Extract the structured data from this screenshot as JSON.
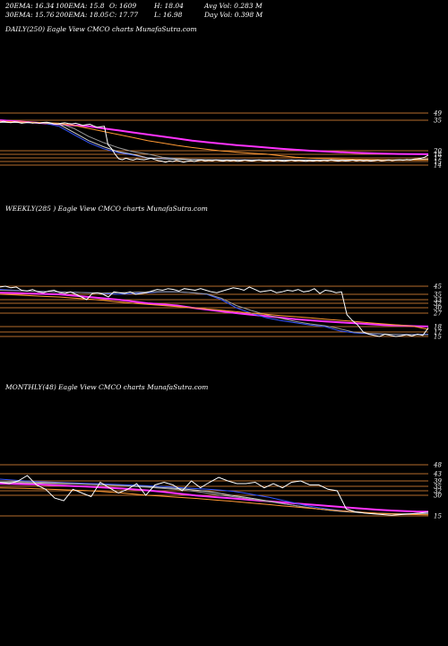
{
  "header": {
    "row1": [
      "20EMA: 16.34",
      "100EMA: 15.8",
      "O: 1609",
      "H: 18.04",
      "Avg Vol: 0.283 M"
    ],
    "row2": [
      "30EMA: 15.76",
      "200EMA: 18.05",
      "C: 17.77",
      "L: 16.98",
      "Day Vol: 0.398 M"
    ]
  },
  "panels": {
    "daily": {
      "title": "DAILY(250) Eagle  View  CMCO charts MunafaSutra.com"
    },
    "weekly": {
      "title": "WEEKLY(285                    ) Eagle  View  CMCO charts MunafaSutra.com"
    },
    "monthly": {
      "title": "MONTHLY(48) Eagle  View  CMCO charts MunafaSutra.com"
    }
  },
  "chart_data": [
    {
      "type": "line",
      "title": "DAILY(250) Eagle  View  CMCO charts MunafaSutra.com",
      "yticks": [
        "49",
        "35",
        "20",
        "18",
        "17",
        "15",
        "14"
      ],
      "price": [
        34,
        34.5,
        34,
        33.8,
        34.2,
        34,
        33.5,
        33.8,
        34,
        33.6,
        33.8,
        33.5,
        33.9,
        34,
        33.7,
        33.2,
        33,
        33.5,
        33.7,
        33.4,
        33.2,
        33.5,
        33,
        32.5,
        32.8,
        33,
        32.2,
        31.5,
        31.8,
        32,
        23,
        21,
        18,
        16.5,
        16,
        16.8,
        16.2,
        15.8,
        16.5,
        16.2,
        16,
        16.4,
        16.8,
        16.1,
        15.5,
        15.2,
        14.8,
        15.3,
        15,
        15.6,
        15.2,
        14.8,
        15.1,
        15.4,
        15,
        15.5,
        15.8,
        15.3,
        15.6,
        15.4,
        15.9,
        15.5,
        15.2,
        15.7,
        15.3,
        15.6,
        15.1,
        15.4,
        15.8,
        15.5,
        15.2,
        15.6,
        15.9,
        15.5,
        15.3,
        15.6,
        15.2,
        15.7,
        15.4,
        15.1,
        15.5,
        15.8,
        15.3,
        15.6,
        15.4,
        15.1,
        15.5,
        15.2,
        15.6,
        15.3,
        15.7,
        15.4,
        15.9,
        15.5,
        15.2,
        15.6,
        15.3,
        15.5,
        15.8,
        15.4,
        15.7,
        15.3,
        15.6,
        15.2,
        15.5,
        15.8,
        15.4,
        15.6,
        15.9,
        15.5,
        15.8,
        16,
        15.7,
        16.1,
        15.8,
        16.3,
        16.5,
        16.8,
        17.2,
        17.77
      ],
      "series": [
        {
          "name": "",
          "color": "#ff33ff",
          "values": [
            35,
            34.5,
            34,
            33.5,
            33,
            32.5,
            32,
            31,
            30,
            29,
            28,
            27,
            26,
            25,
            24.2,
            23.5,
            22.8,
            22.2,
            21.6,
            21,
            20.5,
            20,
            19.6,
            19.2,
            18.9,
            18.6,
            18.4,
            18.2,
            18.1,
            18.05
          ]
        },
        {
          "name": "",
          "color": "#3355ff",
          "values": [
            34,
            33.9,
            33.8,
            33.6,
            32,
            28,
            24,
            21,
            19,
            17.8,
            17,
            16.6,
            16.3,
            16.1,
            16,
            15.9,
            15.9,
            15.8,
            15.8,
            15.8,
            15.8,
            15.8,
            15.8,
            15.8,
            15.8,
            15.8,
            15.8,
            15.8,
            16,
            16.3
          ]
        },
        {
          "name": "",
          "color": "#999999",
          "values": [
            34,
            34,
            33.9,
            33.8,
            33.5,
            31,
            27,
            24,
            21.5,
            19.5,
            18.2,
            17.2,
            16.6,
            16.2,
            16,
            15.9,
            15.8,
            15.8,
            15.8,
            15.8,
            15.8,
            15.8,
            15.8,
            15.8,
            15.8,
            15.8,
            15.8,
            15.8,
            15.9,
            16
          ]
        },
        {
          "name": "",
          "color": "#cccccc",
          "values": [
            34,
            33.9,
            33.8,
            33.6,
            33,
            29,
            25,
            22,
            19.5,
            18,
            17,
            16.5,
            16.2,
            16,
            15.9,
            15.8,
            15.8,
            15.8,
            15.8,
            15.7,
            15.7,
            15.7,
            15.7,
            15.7,
            15.8,
            15.8,
            15.8,
            15.9,
            16.1,
            16.34
          ]
        },
        {
          "name": "",
          "color": "#ff9933",
          "values": [
            34.5,
            34.3,
            34,
            33.8,
            33.5,
            32.5,
            31,
            29.5,
            28,
            26.5,
            25,
            23.8,
            22.6,
            21.6,
            20.7,
            19.9,
            19.2,
            18.6,
            18.1,
            17.6,
            17.2,
            16.9,
            16.6,
            16.4,
            16.2,
            16.1,
            16,
            15.9,
            15.9,
            15.9
          ]
        }
      ]
    },
    {
      "type": "line",
      "title": "WEEKLY(285                    ) Eagle  View  CMCO charts MunafaSutra.com",
      "yticks": [
        "45",
        "35",
        "33",
        "32",
        "30",
        "27",
        "18",
        "17",
        "15"
      ],
      "price": [
        44,
        45,
        43,
        44,
        40,
        39,
        41,
        38,
        37,
        39,
        40,
        37,
        36,
        38,
        35,
        34,
        33,
        36,
        37,
        35,
        34,
        38,
        37,
        36,
        38,
        35,
        36,
        37,
        39,
        41,
        40,
        42,
        41,
        39,
        42,
        41,
        40,
        42,
        40,
        38,
        37,
        39,
        41,
        43,
        42,
        40,
        44,
        41,
        38,
        39,
        40,
        37,
        38,
        40,
        39,
        41,
        38,
        39,
        42,
        36,
        40,
        39,
        37,
        38,
        26,
        22,
        19,
        17,
        16,
        15.5,
        15,
        16,
        15.5,
        15,
        15.3,
        15.8,
        15.2,
        16,
        15.5,
        17.77
      ],
      "series": [
        {
          "name": "",
          "color": "#ff33ff",
          "values": [
            37,
            36.5,
            36,
            35.5,
            35,
            34.5,
            34,
            33.5,
            33,
            32.5,
            32,
            31.5,
            31,
            30,
            29,
            28,
            27,
            26,
            25,
            24,
            23,
            22.2,
            21.5,
            20.8,
            20.2,
            19.6,
            19.1,
            18.7,
            18.3,
            18.05
          ]
        },
        {
          "name": "",
          "color": "#3355ff",
          "values": [
            41,
            40,
            39,
            38.5,
            38,
            37.5,
            37,
            36,
            35,
            36,
            37,
            38,
            38,
            37,
            35,
            33,
            30,
            27,
            24,
            22,
            20.5,
            19,
            18,
            17.2,
            16.6,
            16.2,
            16,
            15.9,
            15.9,
            16
          ]
        },
        {
          "name": "",
          "color": "#999999",
          "values": [
            40,
            39.5,
            39,
            38.5,
            38,
            37.5,
            37,
            36.5,
            37,
            37.5,
            38,
            38.2,
            38,
            37,
            35.5,
            33.5,
            31,
            28.5,
            26,
            23.5,
            21.5,
            19.8,
            18.6,
            17.6,
            16.9,
            16.4,
            16.1,
            15.9,
            15.8,
            15.8
          ]
        },
        {
          "name": "",
          "color": "#ff9933",
          "values": [
            35,
            34.8,
            34.5,
            34.2,
            34,
            33.6,
            33.2,
            32.8,
            32.4,
            32,
            31.5,
            31,
            30.5,
            30,
            29.3,
            28.6,
            27.8,
            27,
            26.2,
            25.4,
            24.6,
            23.8,
            23,
            22.2,
            21.4,
            20.6,
            19.8,
            19,
            18.2,
            17.5
          ]
        }
      ]
    },
    {
      "type": "line",
      "title": "MONTHLY(48) Eagle  View  CMCO charts MunafaSutra.com",
      "yticks": [
        "48",
        "43",
        "39",
        "35",
        "32",
        "30",
        "15"
      ],
      "price": [
        38,
        37,
        39,
        42,
        36,
        33,
        28,
        26,
        33,
        31,
        29,
        38,
        34,
        31,
        33,
        37,
        30,
        36,
        38,
        36,
        32,
        39,
        34,
        38,
        41,
        39,
        37,
        37,
        38,
        34,
        37,
        34,
        38,
        39,
        36,
        36,
        33,
        32,
        20,
        18,
        17,
        16.5,
        16,
        15.5,
        16,
        16.5,
        17,
        17.77
      ],
      "series": [
        {
          "name": "",
          "color": "#ff33ff",
          "values": [
            37,
            36.8,
            36.6,
            36.4,
            36,
            35.6,
            35.2,
            34.8,
            34.4,
            34,
            33.5,
            32.9,
            32.3,
            31.7,
            31.1,
            30.5,
            29.8,
            29.1,
            28.4,
            27.7,
            27,
            26.3,
            25.6,
            24.9,
            24.2,
            23.5,
            22.8,
            22.1,
            21.4,
            20.7,
            20,
            19.4,
            18.9,
            18.5,
            18.2,
            18.05
          ]
        },
        {
          "name": "",
          "color": "#3355ff",
          "values": [
            40,
            39.5,
            39,
            38.6,
            38.2,
            37.8,
            37.5,
            37.2,
            36.9,
            36.6,
            36.2,
            35.8,
            35.4,
            35,
            34.5,
            34,
            33.5,
            33,
            32.4,
            31.8,
            31,
            30,
            28.5,
            26.5,
            24.5,
            22.5,
            21,
            19.8,
            18.8,
            18,
            17.3,
            16.9,
            16.6,
            16.5,
            16.6,
            16.8
          ]
        },
        {
          "name": "",
          "color": "#cccccc",
          "values": [
            38,
            37.8,
            37.6,
            37.4,
            37.2,
            37,
            36.8,
            36.5,
            36.2,
            35.9,
            35.6,
            35.2,
            34.8,
            34.3,
            33.8,
            33.2,
            32.5,
            31.7,
            30.8,
            29.8,
            28.6,
            27.2,
            25.7,
            24.1,
            22.6,
            21.2,
            20,
            19,
            18.2,
            17.6,
            17.1,
            16.8,
            16.6,
            16.5,
            16.5,
            16.6
          ]
        },
        {
          "name": "",
          "color": "#999999",
          "values": [
            39,
            38.7,
            38.4,
            38.1,
            37.8,
            37.5,
            37.1,
            36.7,
            36.3,
            35.9,
            35.4,
            34.9,
            34.4,
            33.8,
            33.2,
            32.5,
            31.7,
            30.9,
            30,
            29,
            27.9,
            26.7,
            25.4,
            24,
            22.6,
            21.3,
            20.1,
            19.1,
            18.3,
            17.7,
            17.2,
            16.9,
            16.7,
            16.6,
            16.6,
            16.7
          ]
        },
        {
          "name": "",
          "color": "#ff9933",
          "values": [
            34,
            33.8,
            33.6,
            33.4,
            33.1,
            32.8,
            32.5,
            32.2,
            31.8,
            31.4,
            31,
            30.5,
            30,
            29.5,
            28.9,
            28.3,
            27.7,
            27,
            26.3,
            25.6,
            24.8,
            24,
            23.2,
            22.4,
            21.6,
            20.8,
            20,
            19.3,
            18.6,
            18,
            17.4,
            16.9,
            16.5,
            16.2,
            16,
            15.8
          ]
        }
      ]
    }
  ]
}
